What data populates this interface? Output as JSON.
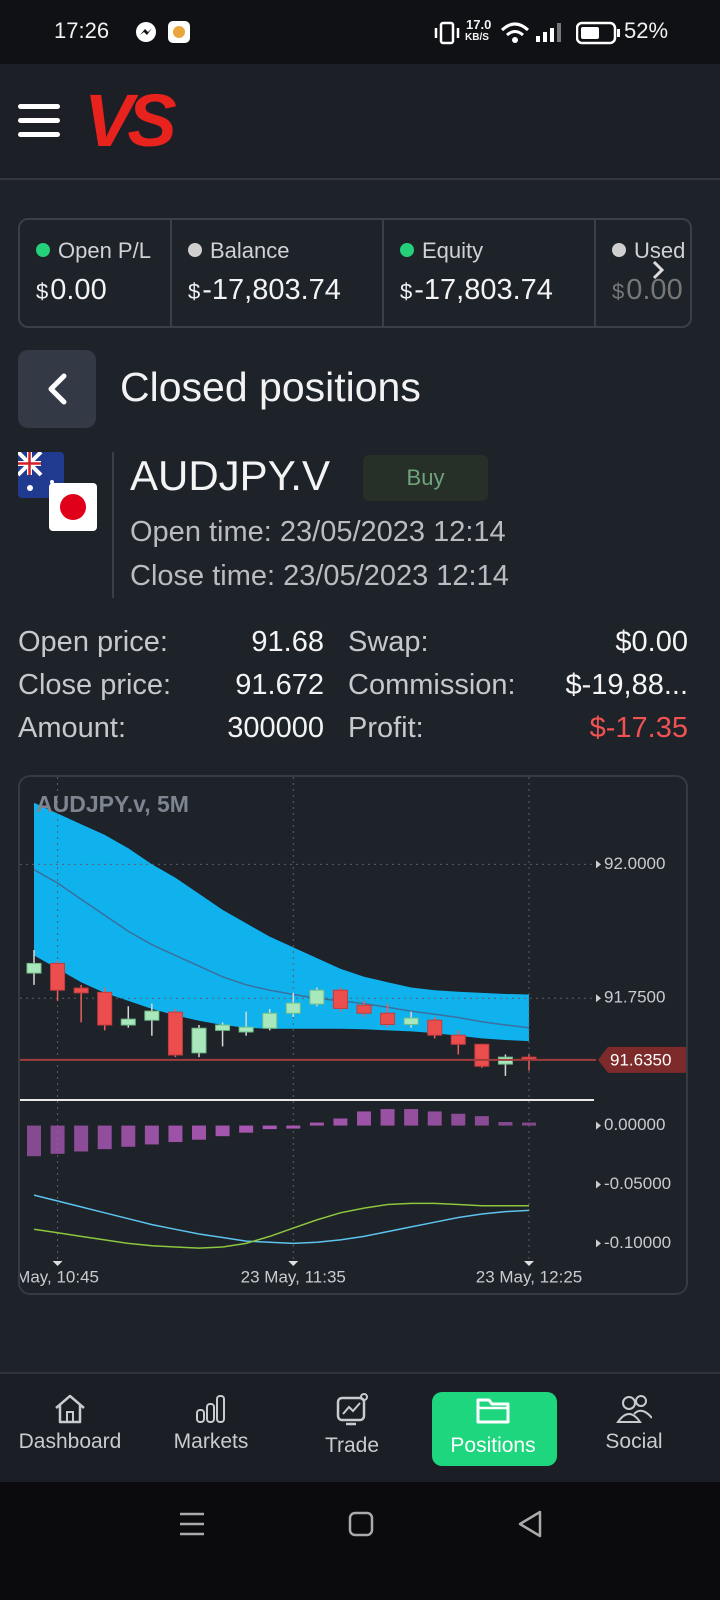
{
  "status_bar": {
    "time": "17:26",
    "speed": "17.0",
    "speed_unit": "KB/S",
    "battery": "52%"
  },
  "header": {
    "logo": "VS"
  },
  "account": [
    {
      "label": "Open P/L",
      "currency": "$",
      "value": "0.00",
      "dot": "#25d07a"
    },
    {
      "label": "Balance",
      "currency": "$",
      "value": "-17,803.74",
      "dot": "#cfcfcf"
    },
    {
      "label": "Equity",
      "currency": "$",
      "value": "-17,803.74",
      "dot": "#25d07a"
    },
    {
      "label": "Used",
      "currency": "$",
      "value": "0.00",
      "dot": "#cfcfcf"
    }
  ],
  "page_title": "Closed positions",
  "position": {
    "symbol": "AUDJPY.V",
    "side": "Buy",
    "open_time": "Open time: 23/05/2023 12:14",
    "close_time": "Close time: 23/05/2023 12:14"
  },
  "details": [
    {
      "label": "Open price:",
      "value": "91.68"
    },
    {
      "label": "Close price:",
      "value": "91.672"
    },
    {
      "label": "Amount:",
      "value": "300000"
    },
    {
      "label": "Swap:",
      "value": "$0.00"
    },
    {
      "label": "Commission:",
      "value": "$-19,88..."
    },
    {
      "label": "Profit:",
      "value": "$-17.35",
      "color": "#f05252"
    }
  ],
  "chart_data": {
    "type": "candlestick",
    "title": "AUDJPY.v, 5M",
    "categories": [
      null,
      "May, 10:45",
      null,
      null,
      null,
      null,
      null,
      null,
      null,
      null,
      null,
      "23 May, 11:35",
      null,
      null,
      null,
      null,
      null,
      null,
      null,
      null,
      null,
      "23 May, 12:25"
    ],
    "open": [
      91.797,
      91.815,
      91.769,
      91.761,
      91.7,
      91.709,
      91.724,
      91.648,
      91.69,
      91.687,
      91.694,
      91.722,
      91.739,
      91.765,
      91.737,
      91.722,
      91.701,
      91.709,
      91.681,
      91.664,
      91.627,
      91.64
    ],
    "high": [
      91.84,
      91.82,
      91.775,
      91.77,
      91.735,
      91.74,
      91.73,
      91.7,
      91.705,
      91.725,
      91.73,
      91.76,
      91.77,
      91.77,
      91.745,
      91.74,
      91.725,
      91.715,
      91.69,
      91.665,
      91.645,
      91.645
    ],
    "low": [
      91.775,
      91.745,
      91.705,
      91.69,
      91.695,
      91.68,
      91.64,
      91.64,
      91.66,
      91.68,
      91.69,
      91.715,
      91.735,
      91.725,
      91.715,
      91.695,
      91.695,
      91.675,
      91.645,
      91.62,
      91.605,
      91.615
    ],
    "close": [
      91.815,
      91.765,
      91.76,
      91.7,
      91.711,
      91.726,
      91.644,
      91.694,
      91.7,
      91.696,
      91.722,
      91.741,
      91.765,
      91.731,
      91.722,
      91.701,
      91.713,
      91.681,
      91.664,
      91.623,
      91.64,
      91.635
    ],
    "band_upper": [
      92.115,
      92.095,
      92.075,
      92.055,
      92.03,
      92.0,
      91.975,
      91.945,
      91.915,
      91.89,
      91.865,
      91.845,
      91.825,
      91.805,
      91.79,
      91.78,
      91.77,
      91.765,
      91.762,
      91.76,
      91.758,
      91.757
    ],
    "band_lower": [
      91.83,
      91.805,
      91.78,
      91.76,
      91.745,
      91.73,
      91.718,
      91.708,
      91.7,
      91.695,
      91.693,
      91.693,
      91.693,
      91.693,
      91.692,
      91.69,
      91.688,
      91.685,
      91.68,
      91.675,
      91.672,
      91.67
    ],
    "ma": [
      91.99,
      91.965,
      91.935,
      91.905,
      91.875,
      91.85,
      91.83,
      91.81,
      91.79,
      91.775,
      91.765,
      91.757,
      91.75,
      91.745,
      91.74,
      91.733,
      91.726,
      91.72,
      91.714,
      91.706,
      91.7,
      91.695
    ],
    "up_color": "#a9e8bd",
    "down_color": "#ec4d4d",
    "band_color": "#10b2ee",
    "ma_color": "#3b6f9e",
    "ylim": [
      91.56,
      92.15
    ],
    "yticks": [
      {
        "value": 92,
        "label": "92.0000"
      },
      {
        "value": 91.75,
        "label": "91.7500"
      }
    ],
    "current_price": {
      "value": 91.635,
      "label": "91.6350"
    },
    "histogram": [
      -0.026,
      -0.024,
      -0.022,
      -0.02,
      -0.018,
      -0.016,
      -0.014,
      -0.012,
      -0.009,
      -0.006,
      -0.003,
      -0.001,
      0.002,
      0.006,
      0.012,
      0.014,
      0.014,
      0.012,
      0.01,
      0.008,
      0.003,
      0.002
    ],
    "histogram_color": "#b25bbd",
    "oscillators": [
      {
        "color": "#5cc4ee",
        "values": [
          -0.059,
          -0.064,
          -0.069,
          -0.074,
          -0.079,
          -0.084,
          -0.088,
          -0.092,
          -0.095,
          -0.098,
          -0.099,
          -0.1,
          -0.099,
          -0.097,
          -0.094,
          -0.09,
          -0.086,
          -0.082,
          -0.078,
          -0.075,
          -0.073,
          -0.072
        ]
      },
      {
        "color": "#8dc63f",
        "values": [
          -0.088,
          -0.091,
          -0.094,
          -0.097,
          -0.1,
          -0.102,
          -0.103,
          -0.104,
          -0.103,
          -0.1,
          -0.094,
          -0.087,
          -0.08,
          -0.074,
          -0.07,
          -0.067,
          -0.066,
          -0.066,
          -0.067,
          -0.068,
          -0.068,
          -0.068
        ]
      }
    ],
    "y2lim": [
      -0.12,
      0.02
    ],
    "y2ticks": [
      {
        "value": 0,
        "label": "0.00000"
      },
      {
        "value": -0.05,
        "label": "-0.05000"
      },
      {
        "value": -0.1,
        "label": "-0.10000"
      }
    ]
  },
  "nav": [
    {
      "label": "Dashboard"
    },
    {
      "label": "Markets"
    },
    {
      "label": "Trade"
    },
    {
      "label": "Positions",
      "active": true
    },
    {
      "label": "Social"
    }
  ]
}
